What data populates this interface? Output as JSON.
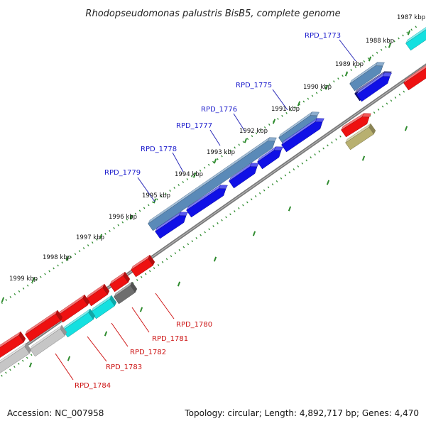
{
  "title": "Rhodopseudomonas palustris BisB5, complete genome",
  "footer": {
    "accession": "Accession: NC_007958",
    "summary": "Topology: circular; Length: 4,892,717 bp; Genes: 4,470"
  },
  "colors": {
    "backbone": "#8e8e8e",
    "tick_dots": "#2e8b2e",
    "forward_label": "#1a1acc",
    "reverse_label": "#cc1111",
    "steelblue": "#5a8ab8",
    "blue": "#1010e6",
    "navy": "#10107a",
    "cyan": "#14e0e0",
    "red": "#ee1111",
    "gray": "#6e6e6e",
    "silver": "#c6c6c6",
    "olive": "#b8b070"
  },
  "tick_labels": [
    "1987 kbp",
    "1988 kbp",
    "1989 kbp",
    "1990 kbp",
    "1991 kbp",
    "1992 kbp",
    "1993 kbp",
    "1994 kbp",
    "1995 kbp",
    "1996 kbp",
    "1997 kbp",
    "1998 kbp",
    "1999 kbp"
  ],
  "forward_gene_labels": [
    "RPD_1773",
    "RPD_1775",
    "RPD_1776",
    "RPD_1777",
    "RPD_1778",
    "RPD_1779"
  ],
  "reverse_gene_labels": [
    "RPD_1780",
    "RPD_1781",
    "RPD_1782",
    "RPD_1783",
    "RPD_1784"
  ]
}
